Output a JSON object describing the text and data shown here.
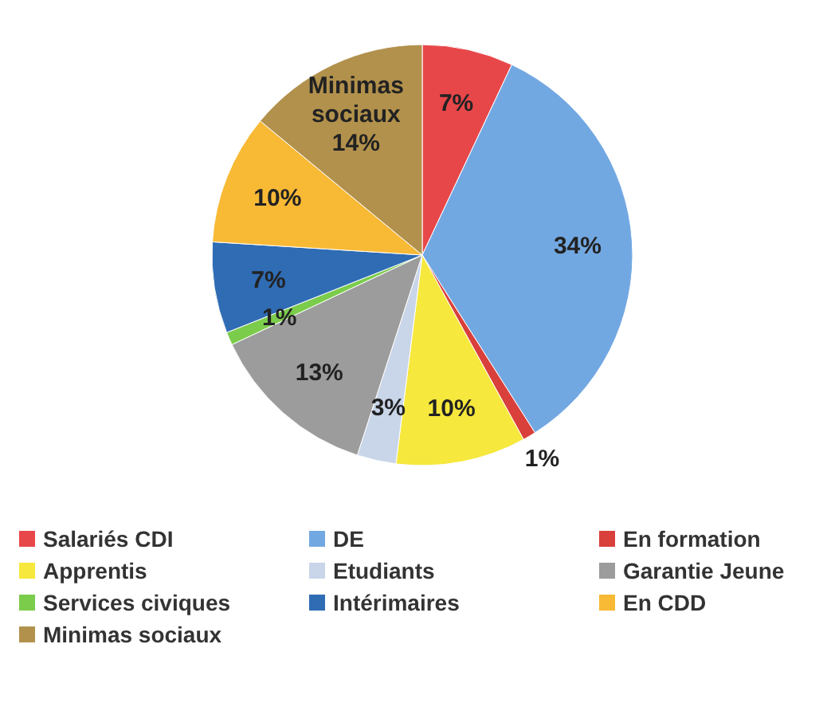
{
  "chart_data": {
    "type": "pie",
    "categories": [
      "Salariés CDI",
      "DE",
      "En formation",
      "Apprentis",
      "Etudiants",
      "Garantie Jeune",
      "Services civiques",
      "Intérimaires",
      "En CDD",
      "Minimas sociaux"
    ],
    "values": [
      7,
      34,
      1,
      10,
      3,
      13,
      1,
      7,
      10,
      14
    ],
    "colors": [
      "#e8474a",
      "#72a8e2",
      "#d9403c",
      "#f6e83c",
      "#c9d5e8",
      "#9c9c9c",
      "#7ccc4c",
      "#2f6cb4",
      "#f8b935",
      "#b2914c"
    ],
    "value_labels": [
      "7%",
      "34%",
      "1%",
      "10%",
      "3%",
      "13%",
      "1%",
      "7%",
      "10%",
      "Minimas sociaux 14%"
    ],
    "legend": "bottom"
  }
}
